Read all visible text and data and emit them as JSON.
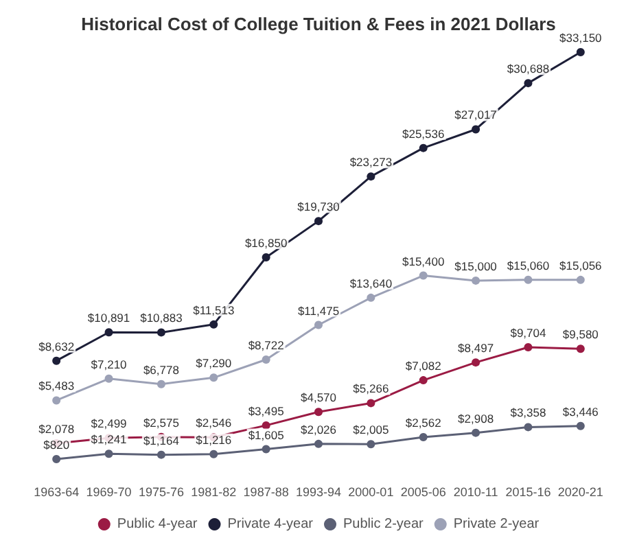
{
  "chart_data": {
    "type": "line",
    "title": "Historical Cost of College Tuition & Fees in 2021 Dollars",
    "categories": [
      "1963-64",
      "1969-70",
      "1975-76",
      "1981-82",
      "1987-88",
      "1993-94",
      "2000-01",
      "2005-06",
      "2010-11",
      "2015-16",
      "2020-21"
    ],
    "series": [
      {
        "name": "Public 4-year",
        "color": "#9b1b44",
        "values": [
          2078,
          2499,
          2575,
          2546,
          3495,
          4570,
          5266,
          7082,
          8497,
          9704,
          9580
        ],
        "value_labels": [
          "$2,078",
          "$2,499",
          "$2,575",
          "$2,546",
          "$3,495",
          "$4,570",
          "$5,266",
          "$7,082",
          "$8,497",
          "$9,704",
          "$9,580"
        ]
      },
      {
        "name": "Private 4-year",
        "color": "#1d1f38",
        "values": [
          8632,
          10891,
          10883,
          11513,
          16850,
          19730,
          23273,
          25536,
          27017,
          30688,
          33150
        ],
        "value_labels": [
          "$8,632",
          "$10,891",
          "$10,883",
          "$11,513",
          "$16,850",
          "$19,730",
          "$23,273",
          "$25,536",
          "$27,017",
          "$30,688",
          "$33,150"
        ]
      },
      {
        "name": "Public 2-year",
        "color": "#5b6075",
        "values": [
          820,
          1241,
          1164,
          1216,
          1605,
          2026,
          2005,
          2562,
          2908,
          3358,
          3446
        ],
        "value_labels": [
          "$820",
          "$1,241",
          "$1,164",
          "$1,216",
          "$1,605",
          "$2,026",
          "$2,005",
          "$2,562",
          "$2,908",
          "$3,358",
          "$3,446"
        ]
      },
      {
        "name": "Private 2-year",
        "color": "#9ca1b6",
        "values": [
          5483,
          7210,
          6778,
          7290,
          8722,
          11475,
          13640,
          15400,
          15000,
          15060,
          15056
        ],
        "value_labels": [
          "$5,483",
          "$7,210",
          "$6,778",
          "$7,290",
          "$8,722",
          "$11,475",
          "$13,640",
          "$15,400",
          "$15,000",
          "$15,060",
          "$15,056"
        ]
      }
    ],
    "grid": false,
    "legend": "bottom",
    "marker": "circle",
    "line_style": "solid"
  }
}
